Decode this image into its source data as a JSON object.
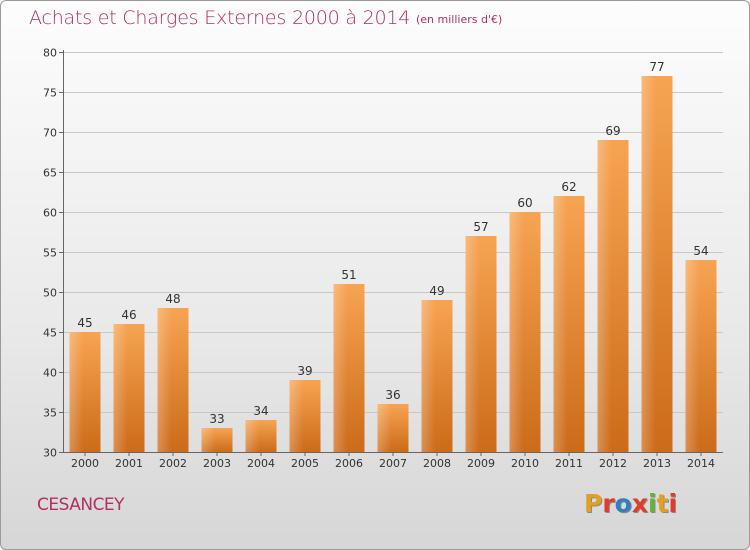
{
  "header": {
    "title": "Achats et Charges Externes 2000 à 2014",
    "unit": "(en milliers d'€)"
  },
  "footer": {
    "place": "CESANCEY",
    "brand": "Proxiti"
  },
  "colors": {
    "title": "#b03060",
    "bar_light": "#f7a452",
    "bar_dark": "#cc6b18",
    "brand_letters": [
      "#e3a020",
      "#e23a2b",
      "#2f7fc1",
      "#e23a2b",
      "#64b335",
      "#e3a020",
      "#e23a2b"
    ]
  },
  "chart_data": {
    "type": "bar",
    "categories": [
      "2000",
      "2001",
      "2002",
      "2003",
      "2004",
      "2005",
      "2006",
      "2007",
      "2008",
      "2009",
      "2010",
      "2011",
      "2012",
      "2013",
      "2014"
    ],
    "values": [
      45,
      46,
      48,
      33,
      34,
      39,
      51,
      36,
      49,
      57,
      60,
      62,
      69,
      77,
      54
    ],
    "ylim": [
      30,
      80
    ],
    "yticks": [
      30,
      35,
      40,
      45,
      50,
      55,
      60,
      65,
      70,
      75,
      80
    ],
    "grid": true,
    "data_labels": true
  }
}
